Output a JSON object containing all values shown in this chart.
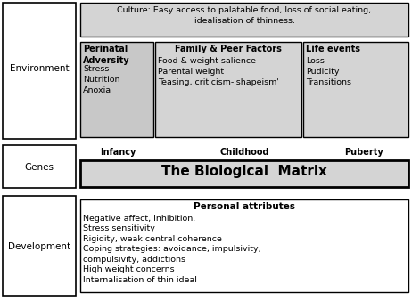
{
  "bg_color": "#ffffff",
  "gray_fill": "#c8c8c8",
  "light_gray_fill": "#d4d4d4",
  "white_fill": "#ffffff",
  "culture_text": "Culture: Easy access to palatable food, loss of social eating,\nidealisation of thinness.",
  "environment_label": "Environment",
  "genes_label": "Genes",
  "development_label": "Development",
  "perinatal_title": "Perinatal\nAdversity",
  "perinatal_body": "Stress\nNutrition\nAnoxia",
  "family_title": "Family & Peer Factors",
  "family_body": "Food & weight salience\nParental weight\nTeasing, criticism-'shapeism'",
  "life_title": "Life events",
  "life_body": "Loss\nPudicity\nTransitions",
  "infancy_label": "Infancy",
  "childhood_label": "Childhood",
  "puberty_label": "Puberty",
  "bio_matrix_text": "The Biological  Matrix",
  "personal_title": "Personal attributes",
  "personal_body": "Negative affect, Inhibition.\nStress sensitivity\nRigidity, weak central coherence\nCoping strategies: avoidance, impulsivity,\ncompulsivity, addictions\nHigh weight concerns\nInternalisation of thin ideal"
}
